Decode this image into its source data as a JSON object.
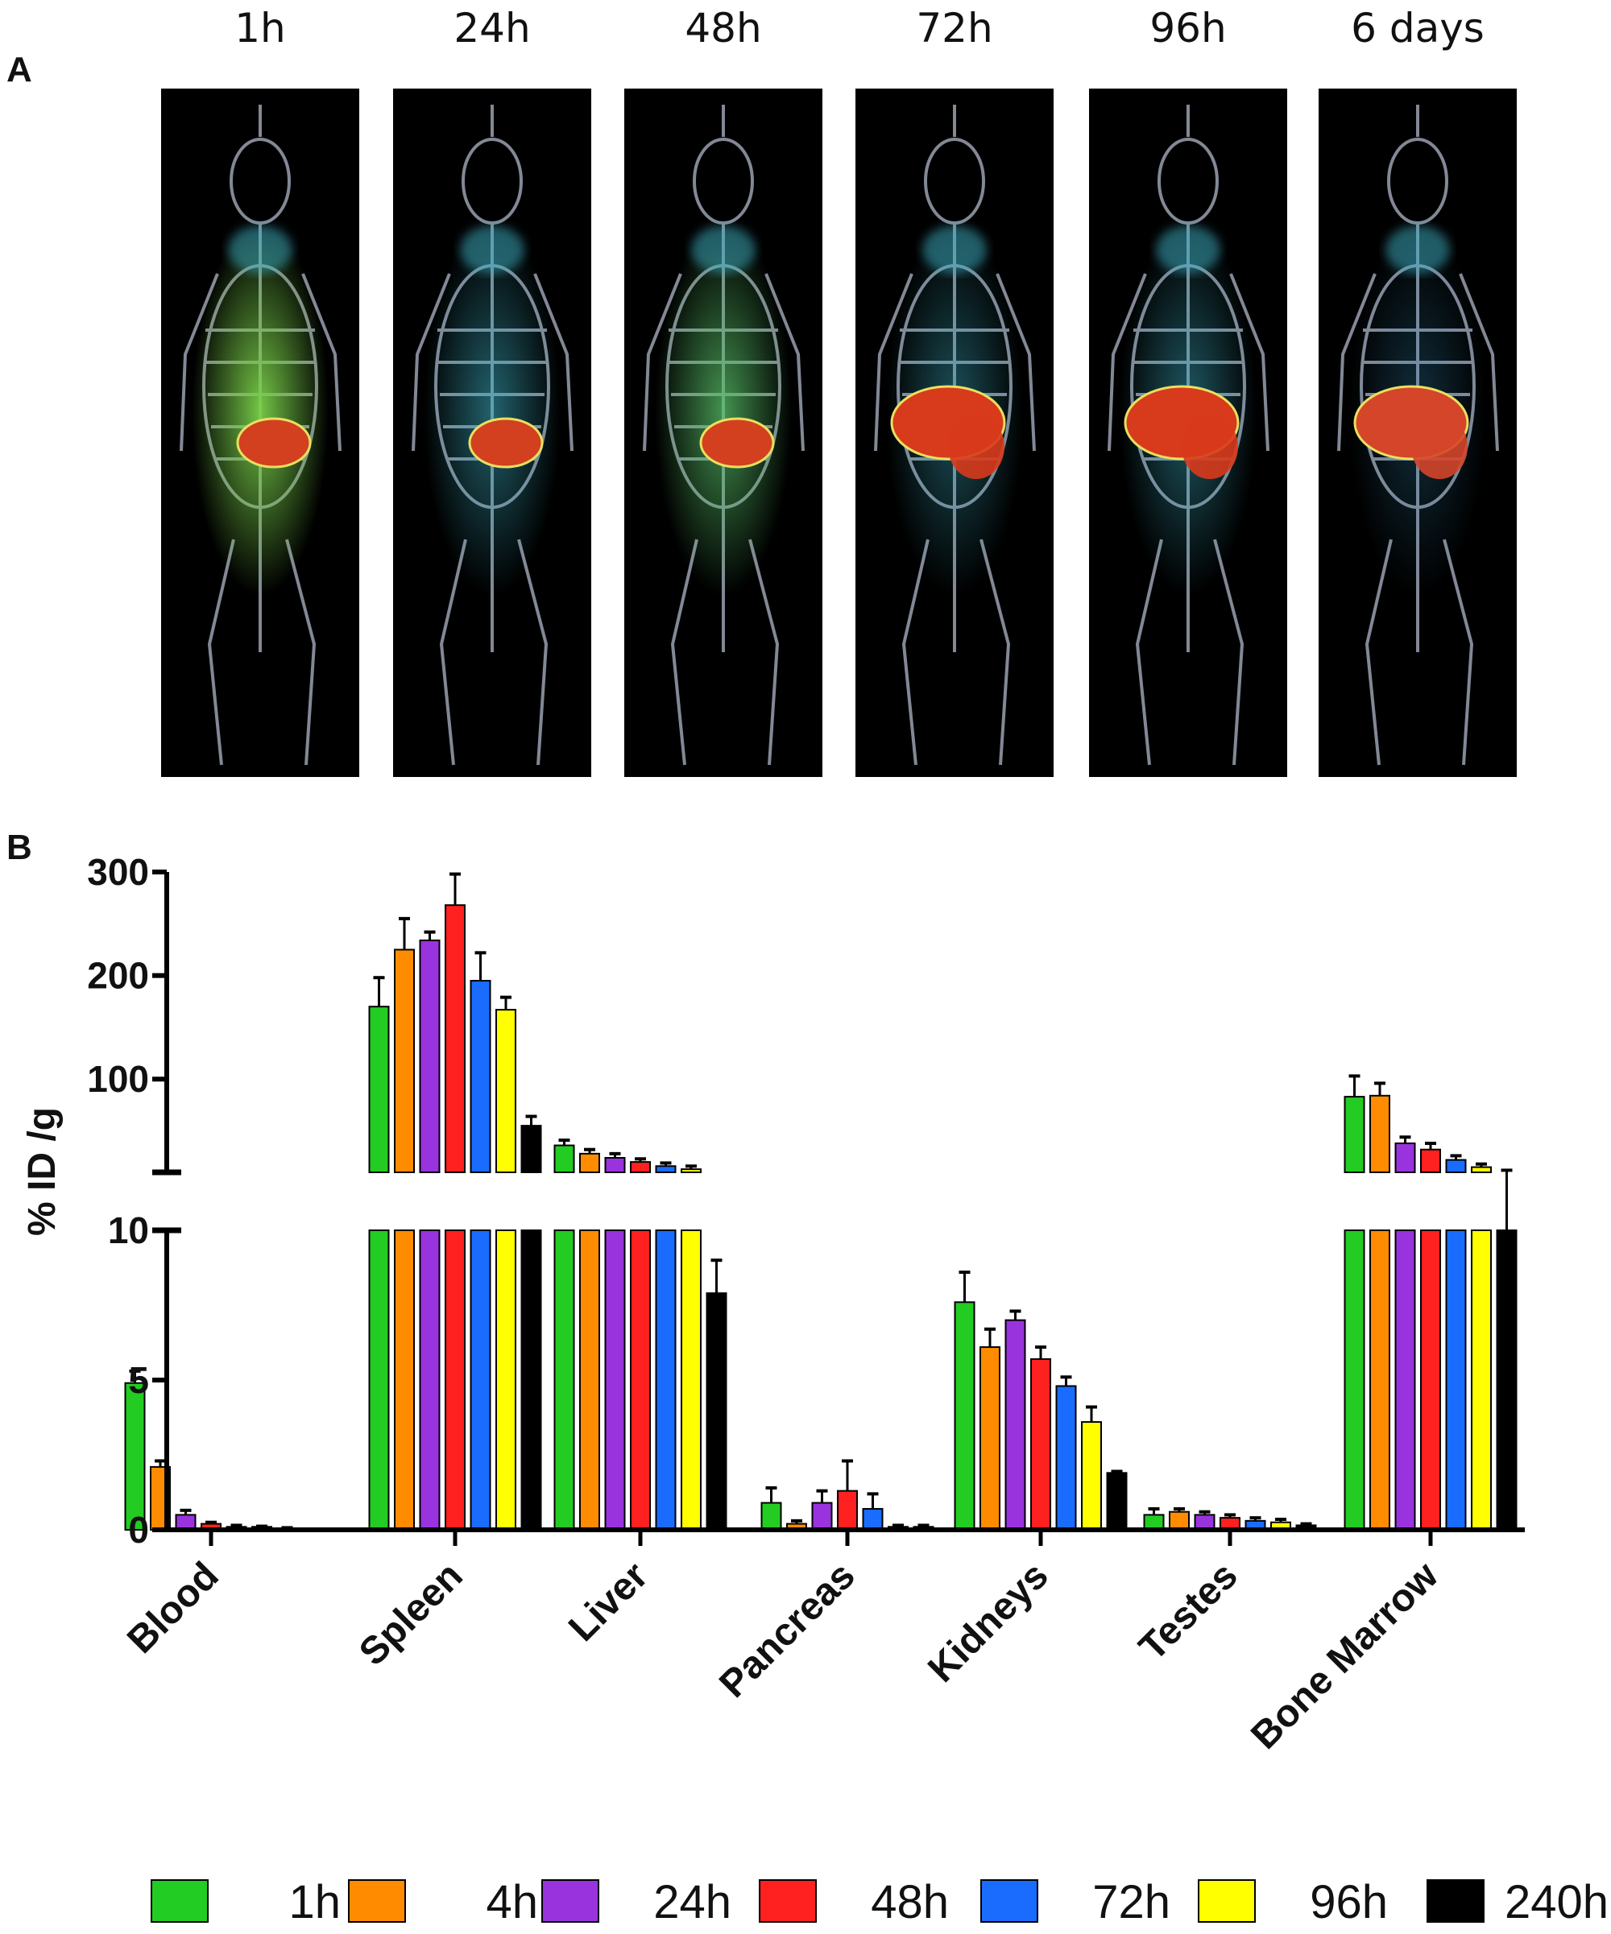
{
  "panels": {
    "a": "A",
    "b": "B"
  },
  "scans": [
    {
      "label": "1h",
      "spleen_color": "#d2401f",
      "body_glow": "#7ad04a",
      "glow": 0.95
    },
    {
      "label": "24h",
      "spleen_color": "#d2401f",
      "body_glow": "#3fb4c8",
      "glow": 0.55
    },
    {
      "label": "48h",
      "spleen_color": "#d2401f",
      "body_glow": "#5ac46a",
      "glow": 0.75
    },
    {
      "label": "72h",
      "spleen_color": "#d83a1c",
      "body_glow": "#3fb4c8",
      "glow": 0.45
    },
    {
      "label": "96h",
      "spleen_color": "#d83a1c",
      "body_glow": "#3fb4c8",
      "glow": 0.5
    },
    {
      "label": "6 days",
      "spleen_color": "#d4452a",
      "body_glow": "#3a9ac8",
      "glow": 0.3
    }
  ],
  "chart_data": {
    "type": "bar",
    "ylabel": "% ID /g",
    "categories": [
      "Blood",
      "Spleen",
      "Liver",
      "Pancreas",
      "Kidneys",
      "Testes",
      "Bone Marrow"
    ],
    "y_axis": {
      "lower": {
        "range": [
          0,
          10
        ],
        "ticks": [
          0,
          5,
          10
        ]
      },
      "upper": {
        "range": [
          10,
          300
        ],
        "ticks": [
          100,
          200,
          300
        ]
      },
      "broken": true
    },
    "series": [
      {
        "name": "1h",
        "color": "#22cc22",
        "values": [
          4.9,
          170,
          36,
          0.9,
          7.6,
          0.5,
          83
        ],
        "errors": [
          0.4,
          28,
          5,
          0.5,
          1.0,
          0.2,
          20
        ]
      },
      {
        "name": "4h",
        "color": "#ff8c00",
        "values": [
          2.1,
          225,
          28,
          0.2,
          6.1,
          0.6,
          84
        ],
        "errors": [
          0.2,
          30,
          4,
          0.1,
          0.6,
          0.1,
          12
        ]
      },
      {
        "name": "24h",
        "color": "#9933dd",
        "values": [
          0.5,
          234,
          24,
          0.9,
          7.0,
          0.5,
          38
        ],
        "errors": [
          0.15,
          8,
          4,
          0.4,
          0.3,
          0.1,
          6
        ]
      },
      {
        "name": "48h",
        "color": "#ff2020",
        "values": [
          0.2,
          268,
          20,
          1.3,
          5.7,
          0.4,
          32
        ],
        "errors": [
          0.05,
          30,
          3,
          1.0,
          0.4,
          0.1,
          6
        ]
      },
      {
        "name": "72h",
        "color": "#1a6cff",
        "values": [
          0.1,
          195,
          16,
          0.7,
          4.8,
          0.3,
          22
        ],
        "errors": [
          0.05,
          27,
          3,
          0.5,
          0.3,
          0.1,
          4
        ]
      },
      {
        "name": "96h",
        "color": "#ffff00",
        "values": [
          0.1,
          167,
          13,
          0.1,
          3.6,
          0.25,
          15
        ],
        "errors": [
          0.02,
          12,
          3,
          0.05,
          0.5,
          0.1,
          3
        ]
      },
      {
        "name": "240h",
        "color": "#000000",
        "values": [
          0.05,
          55,
          7.9,
          0.1,
          1.9,
          0.15,
          10
        ],
        "errors": [
          0.02,
          9,
          1.1,
          0.05,
          0.05,
          0.05,
          2
        ]
      }
    ],
    "legend_position": "bottom"
  }
}
